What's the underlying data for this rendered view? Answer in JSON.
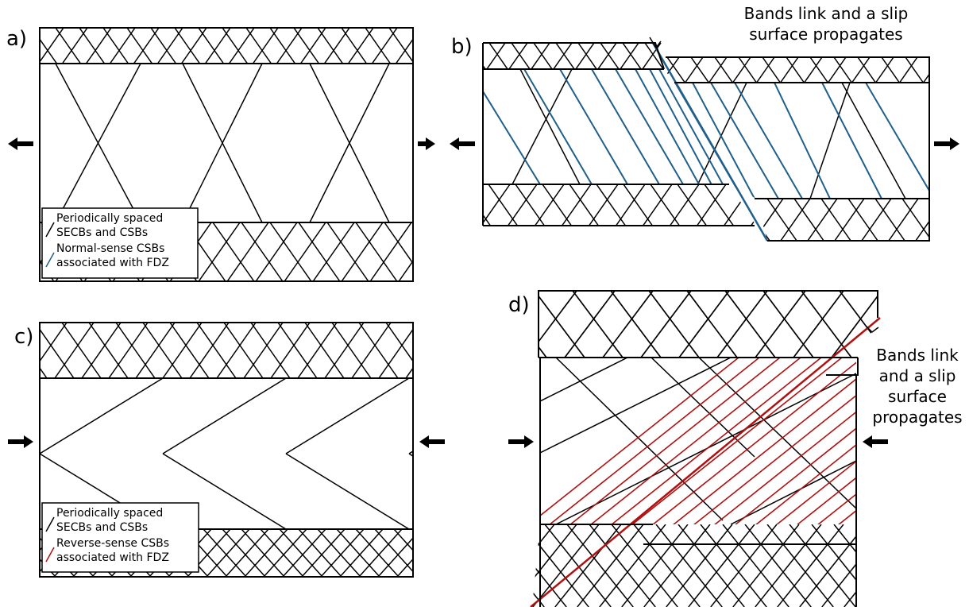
{
  "panels": [
    {
      "label": "a)",
      "legend": [
        "Periodically spaced",
        "SECBs and CSBs",
        "Normal-sense CSBs",
        "associated with FDZ"
      ],
      "arrows": "extension"
    },
    {
      "label": "b)",
      "caption": [
        "Bands link and a slip",
        "surface propagates"
      ],
      "arrows": "extension"
    },
    {
      "label": "c)",
      "legend": [
        "Periodically spaced",
        "SECBs and CSBs",
        "Reverse-sense CSBs",
        "associated with FDZ"
      ],
      "arrows": "compression"
    },
    {
      "label": "d)",
      "caption": [
        "Bands link",
        "and a slip",
        "surface",
        "propagates"
      ],
      "arrows": "compression"
    }
  ],
  "colors": {
    "background": "#ffffff",
    "outline": "#000000",
    "normal_sense_band": "#1f5f8b",
    "reverse_sense_band": "#b01010"
  }
}
